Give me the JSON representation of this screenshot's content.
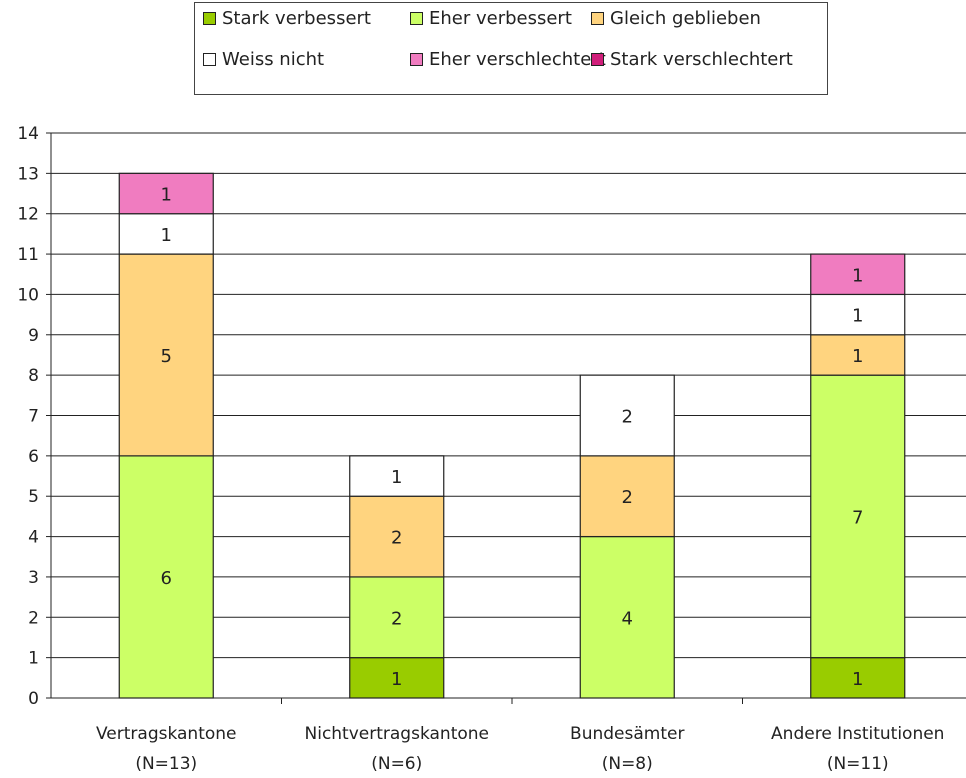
{
  "chart_data": {
    "type": "bar",
    "stacked": true,
    "categories": [
      [
        "Vertragskantone",
        "(N=13)"
      ],
      [
        "Nichtvertragskantone",
        "(N=6)"
      ],
      [
        "Bundesämter",
        "(N=8)"
      ],
      [
        "Andere Institutionen",
        "(N=11)"
      ]
    ],
    "series": [
      {
        "name": "Stark verbessert",
        "color": "#99cc00",
        "values": [
          0,
          1,
          0,
          1
        ]
      },
      {
        "name": "Eher verbessert",
        "color": "#ccff66",
        "values": [
          6,
          2,
          4,
          7
        ]
      },
      {
        "name": "Gleich geblieben",
        "color": "#ffd47f",
        "values": [
          5,
          2,
          2,
          1
        ]
      },
      {
        "name": "Weiss nicht",
        "color": "#ffffff",
        "values": [
          1,
          1,
          2,
          1
        ]
      },
      {
        "name": "Eher verschlechtert",
        "color": "#f07cc0",
        "values": [
          1,
          0,
          0,
          1
        ]
      },
      {
        "name": "Stark verschlechtert",
        "color": "#d01e7a",
        "values": [
          0,
          0,
          0,
          0
        ]
      }
    ],
    "ylim": [
      0,
      14
    ],
    "yticks": [
      0,
      1,
      2,
      3,
      4,
      5,
      6,
      7,
      8,
      9,
      10,
      11,
      12,
      13,
      14
    ],
    "grid": true,
    "legend_position": "top"
  }
}
